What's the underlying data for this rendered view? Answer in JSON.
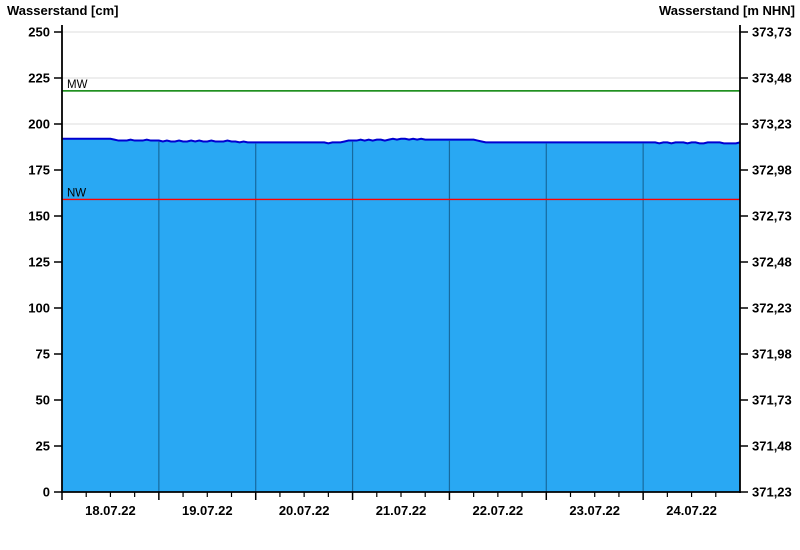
{
  "chart_data": {
    "type": "area",
    "title_left": "Wasserstand [cm]",
    "title_right": "Wasserstand [m NHN]",
    "y_left_ticks": [
      250,
      225,
      200,
      175,
      150,
      125,
      100,
      75,
      50,
      25,
      0
    ],
    "y_right_ticks": [
      "373,73",
      "373,48",
      "373,23",
      "372,98",
      "372,73",
      "372,48",
      "372,23",
      "371,98",
      "371,73",
      "371,48",
      "371,23"
    ],
    "y_left_range": [
      0,
      250
    ],
    "x_day_labels": [
      "18.07.22",
      "19.07.22",
      "20.07.22",
      "21.07.22",
      "22.07.22",
      "23.07.22",
      "24.07.22"
    ],
    "minor_ticks_per_day": 4,
    "grid": {
      "horizontal": true,
      "vertical_day_lines": true
    },
    "reference_lines": [
      {
        "label": "MW",
        "value_cm": 218,
        "color": "#008000"
      },
      {
        "label": "NW",
        "value_cm": 159,
        "color": "#ff0000"
      }
    ],
    "series": {
      "name": "Wasserstand",
      "unit": "cm",
      "start": "18.07.22 00:00",
      "step_hours": 1,
      "values_cm": [
        192,
        192,
        192,
        192,
        192,
        192,
        192,
        192,
        192,
        192,
        192,
        192,
        192,
        191.5,
        191,
        191,
        191,
        191.5,
        191,
        191,
        191,
        191.5,
        191,
        191,
        191,
        190.5,
        191,
        190.5,
        190.5,
        191,
        190.5,
        190.5,
        191,
        190.5,
        191,
        190.5,
        190.5,
        191,
        190.5,
        190.5,
        190.5,
        191,
        190.5,
        190.5,
        190,
        190.5,
        190,
        190,
        190,
        190,
        190,
        190,
        190,
        190,
        190,
        190,
        190,
        190,
        190,
        190,
        190,
        190,
        190,
        190,
        190,
        190,
        189.5,
        190,
        190,
        190,
        190.5,
        191,
        191,
        191,
        191.5,
        191,
        191.5,
        191,
        191.5,
        191.5,
        191,
        191.5,
        192,
        191.5,
        192,
        192,
        191.5,
        192,
        191.5,
        192,
        191.5,
        191.5,
        191.5,
        191.5,
        191.5,
        191.5,
        191.5,
        191.5,
        191.5,
        191.5,
        191.5,
        191.5,
        191.5,
        191,
        190.5,
        190,
        190,
        190,
        190,
        190,
        190,
        190,
        190,
        190,
        190,
        190,
        190,
        190,
        190,
        190,
        190,
        190,
        190,
        190,
        190,
        190,
        190,
        190,
        190,
        190,
        190,
        190,
        190,
        190,
        190,
        190,
        190,
        190,
        190,
        190,
        190,
        190,
        190,
        190,
        190,
        190,
        190,
        190,
        189.5,
        190,
        190,
        189.5,
        190,
        190,
        190,
        189.5,
        190,
        190,
        189.5,
        189.5,
        190,
        190,
        190,
        190,
        189.5,
        189.5,
        189.5,
        189.5,
        190
      ]
    },
    "colors": {
      "area_fill": "#29a8f3",
      "area_line": "#0000d0",
      "v_grid": "#176a9f",
      "h_grid": "#dcdcdc",
      "axis": "#000000",
      "text": "#000000"
    }
  }
}
